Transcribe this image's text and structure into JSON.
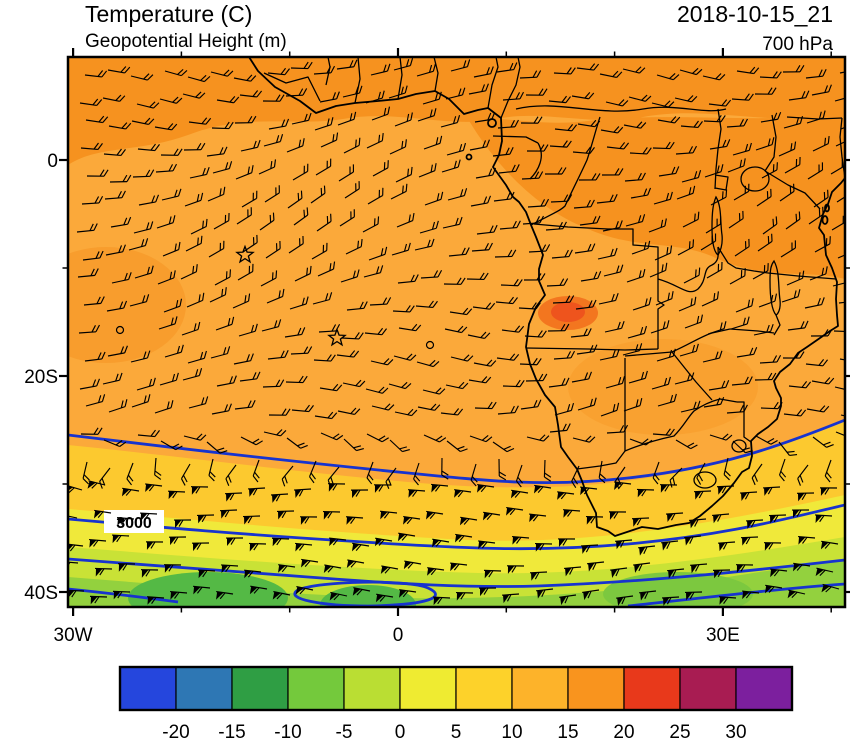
{
  "header": {
    "title": "Temperature (C)",
    "subtitle": "Geopotential Height (m)",
    "datetime": "2018-10-15_21",
    "level": "700 hPa"
  },
  "map": {
    "contour_label": "3000"
  },
  "axes": {
    "lat_ticks": [
      {
        "deg": 0,
        "label": "0"
      },
      {
        "deg": -10,
        "label": ""
      },
      {
        "deg": -20,
        "label": "20S"
      },
      {
        "deg": -30,
        "label": ""
      },
      {
        "deg": -40,
        "label": "40S"
      }
    ],
    "lon_ticks": [
      {
        "deg": -30,
        "label": "30W"
      },
      {
        "deg": -20,
        "label": ""
      },
      {
        "deg": -10,
        "label": ""
      },
      {
        "deg": 0,
        "label": "0"
      },
      {
        "deg": 10,
        "label": ""
      },
      {
        "deg": 20,
        "label": ""
      },
      {
        "deg": 30,
        "label": "30E"
      },
      {
        "deg": 40,
        "label": ""
      }
    ]
  },
  "colorbar": {
    "tick_labels": [
      "-20",
      "-15",
      "-10",
      "-5",
      "0",
      "5",
      "10",
      "15",
      "20",
      "25",
      "30"
    ],
    "colors": [
      "#2546dd",
      "#2e77b4",
      "#2f9e44",
      "#74c93c",
      "#bade33",
      "#efeb31",
      "#fdd22a",
      "#fdb32a",
      "#f9941e",
      "#e8391b",
      "#a81c52",
      "#7c1f9e"
    ]
  },
  "chart_data": {
    "type": "heatmap",
    "title": "Temperature (C)",
    "overlay_contours": "Geopotential Height (m)",
    "wind_overlay": "wind barbs",
    "valid_time": "2018-10-15_21",
    "pressure_level": "700 hPa",
    "x_axis": {
      "name": "longitude",
      "tick_labels": [
        "30W",
        "0",
        "30E"
      ],
      "range_deg": [
        -30.5,
        41.3
      ]
    },
    "y_axis": {
      "name": "latitude",
      "tick_labels": [
        "0",
        "20S",
        "40S"
      ],
      "range_deg": [
        -41,
        9.5
      ]
    },
    "colorbar_levels_C": [
      -20,
      -15,
      -10,
      -5,
      0,
      5,
      10,
      15,
      20,
      25,
      30
    ],
    "colorbar_colors": [
      "#2546dd",
      "#2e77b4",
      "#2f9e44",
      "#74c93c",
      "#bade33",
      "#efeb31",
      "#fdd22a",
      "#fdb32a",
      "#f9941e",
      "#e8391b",
      "#a81c52",
      "#7c1f9e"
    ],
    "labeled_contours_m": [
      3000
    ],
    "markers": [
      {
        "type": "star",
        "approx_lon": -14,
        "approx_lat": -9
      },
      {
        "type": "star",
        "approx_lon": -5.7,
        "approx_lat": -16
      },
      {
        "type": "calm-circle",
        "approx_lon": -25.5,
        "approx_lat": -15.7
      },
      {
        "type": "calm-circle",
        "approx_lon": 3,
        "approx_lat": -17
      }
    ],
    "field_summary": "Temperature mostly 10-15C (orange) over tropical Africa and the Atlantic, 15-20C patches over the Congo basin and the north, decreasing southward through 5-10C (gold) and 0-5C (yellow) bands to -5-0C (green) south of ~35S; blue geopotential-height contours (3000 m labeled) cross the southern part of the domain; wind barbs overlaid everywhere, with pennant barbs in the southern westerlies."
  }
}
